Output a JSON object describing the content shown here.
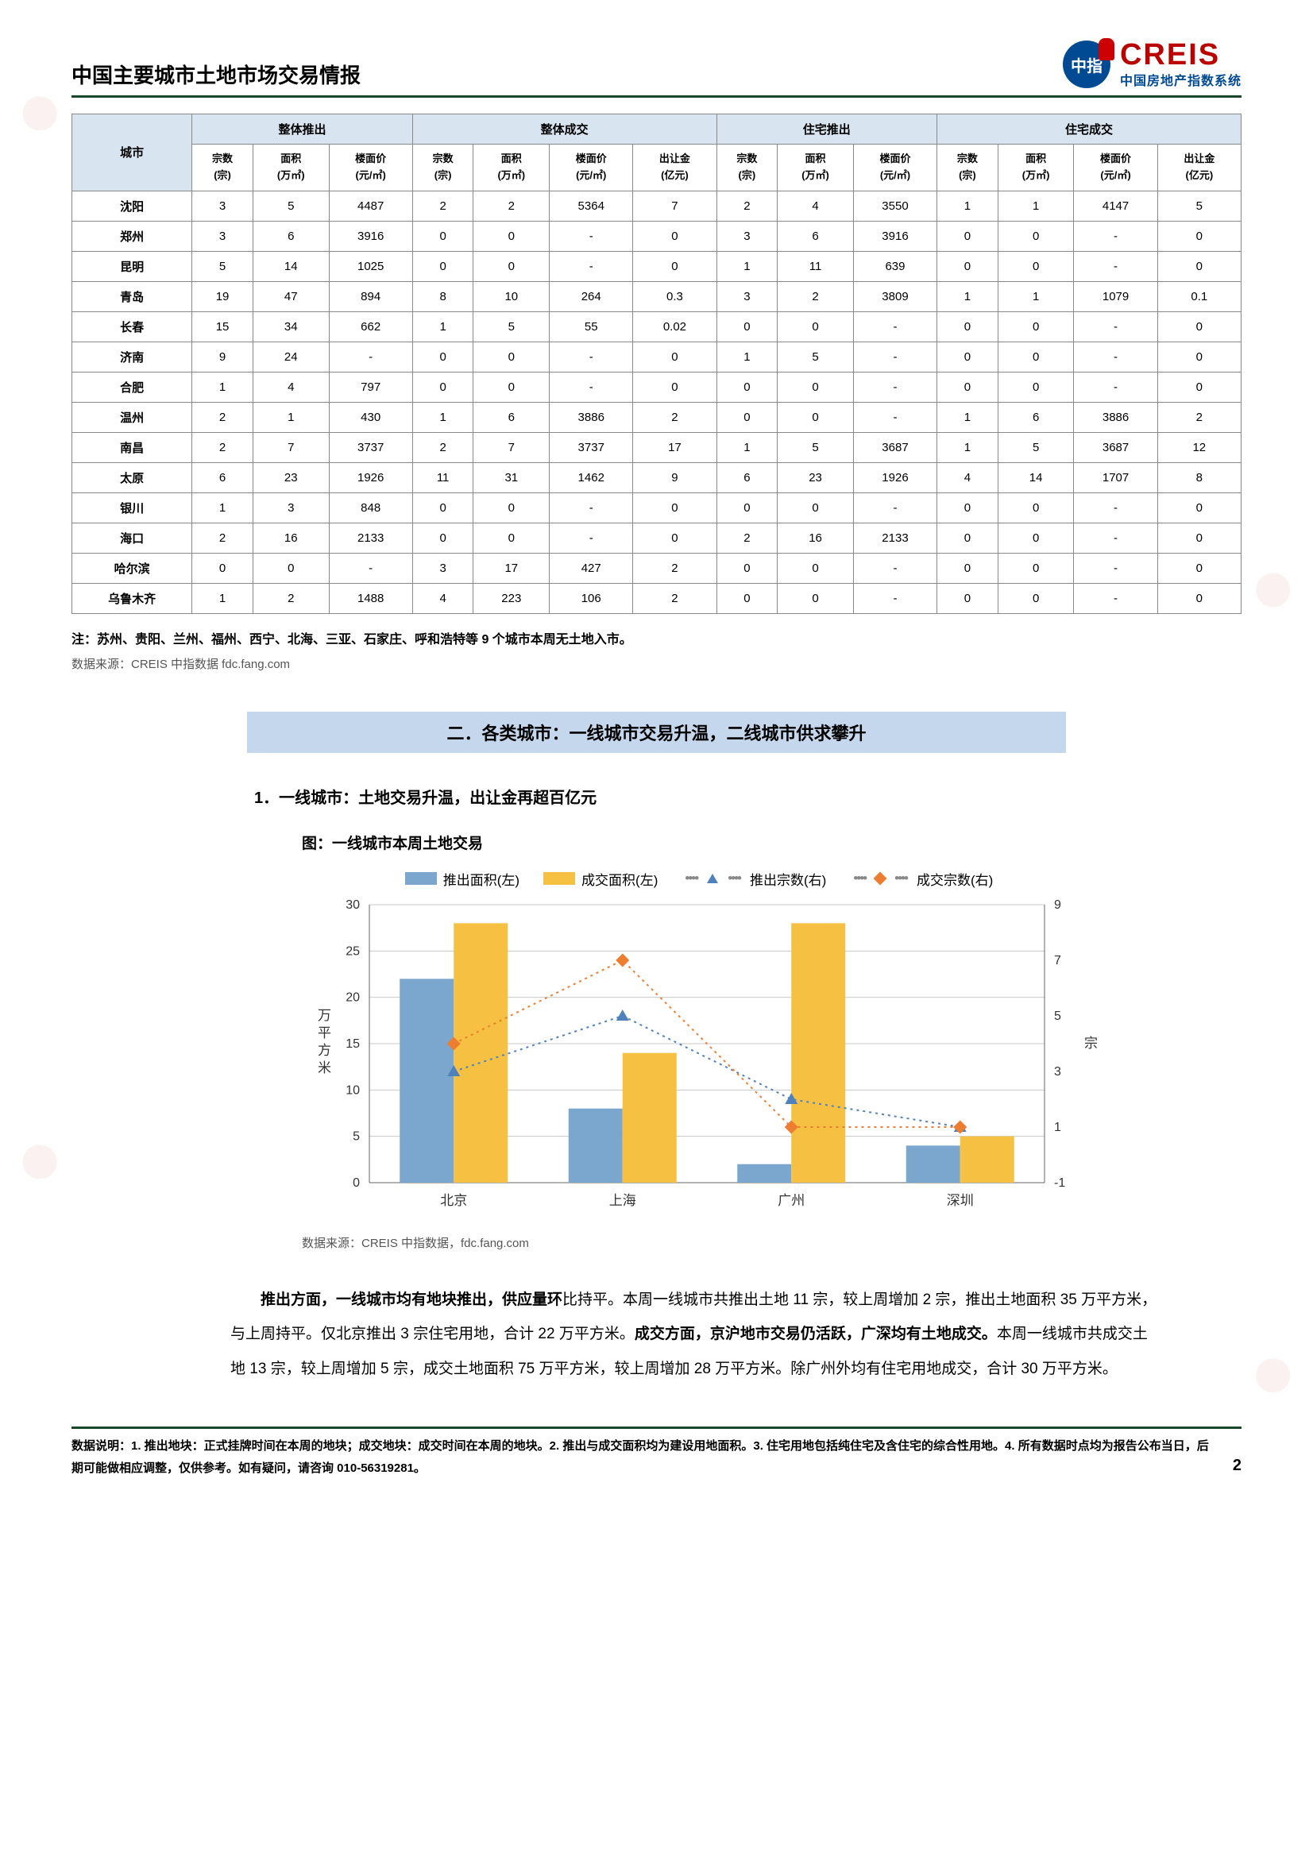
{
  "header": {
    "title": "中国主要城市土地市场交易情报",
    "logo_text": "CREIS",
    "logo_sub": "中国房地产指数系统",
    "logo_icon_text": "中指"
  },
  "table": {
    "groups": [
      "整体推出",
      "整体成交",
      "住宅推出",
      "住宅成交"
    ],
    "city_h": "城市",
    "sub": [
      "宗数\n(宗)",
      "面积\n(万㎡)",
      "楼面价\n(元/㎡)",
      "宗数\n(宗)",
      "面积\n(万㎡)",
      "楼面价\n(元/㎡)",
      "出让金\n(亿元)",
      "宗数\n(宗)",
      "面积\n(万㎡)",
      "楼面价\n(元/㎡)",
      "宗数\n(宗)",
      "面积\n(万㎡)",
      "楼面价\n(元/㎡)",
      "出让金\n(亿元)"
    ],
    "rows": [
      [
        "沈阳",
        "3",
        "5",
        "4487",
        "2",
        "2",
        "5364",
        "7",
        "2",
        "4",
        "3550",
        "1",
        "1",
        "4147",
        "5"
      ],
      [
        "郑州",
        "3",
        "6",
        "3916",
        "0",
        "0",
        "-",
        "0",
        "3",
        "6",
        "3916",
        "0",
        "0",
        "-",
        "0"
      ],
      [
        "昆明",
        "5",
        "14",
        "1025",
        "0",
        "0",
        "-",
        "0",
        "1",
        "11",
        "639",
        "0",
        "0",
        "-",
        "0"
      ],
      [
        "青岛",
        "19",
        "47",
        "894",
        "8",
        "10",
        "264",
        "0.3",
        "3",
        "2",
        "3809",
        "1",
        "1",
        "1079",
        "0.1"
      ],
      [
        "长春",
        "15",
        "34",
        "662",
        "1",
        "5",
        "55",
        "0.02",
        "0",
        "0",
        "-",
        "0",
        "0",
        "-",
        "0"
      ],
      [
        "济南",
        "9",
        "24",
        "-",
        "0",
        "0",
        "-",
        "0",
        "1",
        "5",
        "-",
        "0",
        "0",
        "-",
        "0"
      ],
      [
        "合肥",
        "1",
        "4",
        "797",
        "0",
        "0",
        "-",
        "0",
        "0",
        "0",
        "-",
        "0",
        "0",
        "-",
        "0"
      ],
      [
        "温州",
        "2",
        "1",
        "430",
        "1",
        "6",
        "3886",
        "2",
        "0",
        "0",
        "-",
        "1",
        "6",
        "3886",
        "2"
      ],
      [
        "南昌",
        "2",
        "7",
        "3737",
        "2",
        "7",
        "3737",
        "17",
        "1",
        "5",
        "3687",
        "1",
        "5",
        "3687",
        "12"
      ],
      [
        "太原",
        "6",
        "23",
        "1926",
        "11",
        "31",
        "1462",
        "9",
        "6",
        "23",
        "1926",
        "4",
        "14",
        "1707",
        "8"
      ],
      [
        "银川",
        "1",
        "3",
        "848",
        "0",
        "0",
        "-",
        "0",
        "0",
        "0",
        "-",
        "0",
        "0",
        "-",
        "0"
      ],
      [
        "海口",
        "2",
        "16",
        "2133",
        "0",
        "0",
        "-",
        "0",
        "2",
        "16",
        "2133",
        "0",
        "0",
        "-",
        "0"
      ],
      [
        "哈尔滨",
        "0",
        "0",
        "-",
        "3",
        "17",
        "427",
        "2",
        "0",
        "0",
        "-",
        "0",
        "0",
        "-",
        "0"
      ],
      [
        "乌鲁木齐",
        "1",
        "2",
        "1488",
        "4",
        "223",
        "106",
        "2",
        "0",
        "0",
        "-",
        "0",
        "0",
        "-",
        "0"
      ]
    ]
  },
  "note": "注：苏州、贵阳、兰州、福州、西宁、北海、三亚、石家庄、呼和浩特等 9 个城市本周无土地入市。",
  "source": "数据来源：CREIS 中指数据 fdc.fang.com",
  "section": "二．各类城市：一线城市交易升温，二线城市供求攀升",
  "subheading": "1．一线城市：土地交易升温，出让金再超百亿元",
  "chart": {
    "title": "图：一线城市本周土地交易",
    "legend": [
      "推出面积(左)",
      "成交面积(左)",
      "推出宗数(右)",
      "成交宗数(右)"
    ],
    "categories": [
      "北京",
      "上海",
      "广州",
      "深圳"
    ],
    "left_axis": {
      "label": "万平方米",
      "min": 0,
      "max": 30,
      "ticks": [
        0,
        5,
        10,
        15,
        20,
        25,
        30
      ]
    },
    "right_axis": {
      "label": "宗",
      "min": -1,
      "max": 9,
      "ticks": [
        -1,
        1,
        3,
        5,
        7,
        9
      ]
    },
    "series": {
      "push_area": [
        22,
        8,
        2,
        4
      ],
      "deal_area": [
        28,
        14,
        28,
        5
      ],
      "push_count": [
        3,
        5,
        2,
        1
      ],
      "deal_count": [
        4,
        7,
        1,
        1
      ]
    },
    "colors": {
      "push_area": "#7ba7ce",
      "deal_area": "#f6c142",
      "push_count": "#4f81bd",
      "deal_count": "#ed7d31",
      "grid": "#c8c8c8",
      "axis": "#666",
      "bg": "#ffffff"
    },
    "bar_width": 0.32,
    "source": "数据来源：CREIS 中指数据，fdc.fang.com"
  },
  "paragraph": {
    "p1a": "推出方面，一线城市均有地块推出，供应量环",
    "p1b": "比持平。本周一线城市共推出土地 11 宗，较上周增加 2 宗，推出土地面积 35 万平方米，与上周持平。仅北京推出 3 宗住宅用地，合计 22 万平方米。",
    "p2a": "成交方面，京沪地市交易仍活跃，广深均有土地成交。",
    "p2b": "本周一线城市共成交土地 13 宗，较上周增加 5 宗，成交土地面积 75 万平方米，较上周增加 28 万平方米。除广州外均有住宅用地成交，合计 30 万平方米。"
  },
  "footer": {
    "text": "数据说明：1. 推出地块：正式挂牌时间在本周的地块；成交地块：成交时间在本周的地块。2. 推出与成交面积均为建设用地面积。3. 住宅用地包括纯住宅及含住宅的综合性用地。4. 所有数据时点均为报告公布当日，后期可能做相应调整，仅供参考。如有疑问，请咨询 010-56319281。",
    "page": "2"
  }
}
